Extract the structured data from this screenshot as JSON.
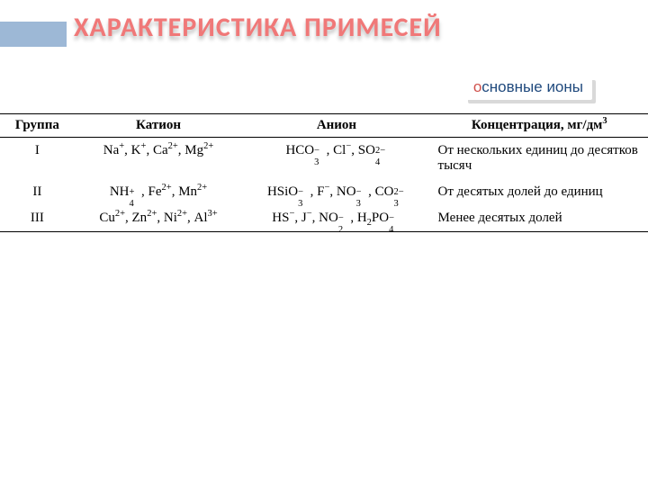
{
  "title": {
    "text": "ХАРАКТЕРИСТИКА ПРИМЕСЕЙ",
    "color": "#f07878",
    "fontSize": 30
  },
  "headerBar": {
    "color": "#9db8d6"
  },
  "badge": {
    "firstLetter": "о",
    "rest": "сновные ионы",
    "firstColor": "#d0504b",
    "restColor": "#1f497d",
    "fontSize": 17
  },
  "table": {
    "columns": [
      "Группа",
      "Катион",
      "Анион",
      "Концентрация, мг/дм"
    ],
    "concSup": "3",
    "rows": [
      {
        "group": "I",
        "cations": [
          {
            "base": "Na",
            "sup": "+",
            "sub": ""
          },
          {
            "base": "K",
            "sup": "+",
            "sub": ""
          },
          {
            "base": "Ca",
            "sup": "2+",
            "sub": ""
          },
          {
            "base": "Mg",
            "sup": "2+",
            "sub": ""
          }
        ],
        "anions": [
          {
            "base": "HCO",
            "sup": "−",
            "sub": "3"
          },
          {
            "base": "Cl",
            "sup": "−",
            "sub": ""
          },
          {
            "base": "SO",
            "sup": "2−",
            "sub": "4"
          }
        ],
        "conc": "От нескольких единиц до десятков тысяч"
      },
      {
        "group": "II",
        "cations": [
          {
            "base": "NH",
            "sup": "+",
            "sub": "4"
          },
          {
            "base": "Fe",
            "sup": "2+",
            "sub": ""
          },
          {
            "base": "Mn",
            "sup": "2+",
            "sub": ""
          }
        ],
        "anions": [
          {
            "base": "HSiO",
            "sup": "−",
            "sub": "3"
          },
          {
            "base": "F",
            "sup": "−",
            "sub": ""
          },
          {
            "base": "NO",
            "sup": "−",
            "sub": "3"
          },
          {
            "base": "CO",
            "sup": "2−",
            "sub": "3"
          }
        ],
        "conc": "От десятых долей до единиц"
      },
      {
        "group": "III",
        "cations": [
          {
            "base": "Cu",
            "sup": "2+",
            "sub": ""
          },
          {
            "base": "Zn",
            "sup": "2+",
            "sub": ""
          },
          {
            "base": "Ni",
            "sup": "2+",
            "sub": ""
          },
          {
            "base": "Al",
            "sup": "3+",
            "sub": ""
          }
        ],
        "anions": [
          {
            "base": "HS",
            "sup": "−",
            "sub": ""
          },
          {
            "base": "J",
            "sup": "−",
            "sub": ""
          },
          {
            "base": "NO",
            "sup": "−",
            "sub": "2"
          },
          {
            "base": "H",
            "sup": "",
            "sub": "2",
            "tail": "PO",
            "tsup": "−",
            "tsub": "4"
          }
        ],
        "conc": "Менее десятых долей"
      }
    ]
  }
}
